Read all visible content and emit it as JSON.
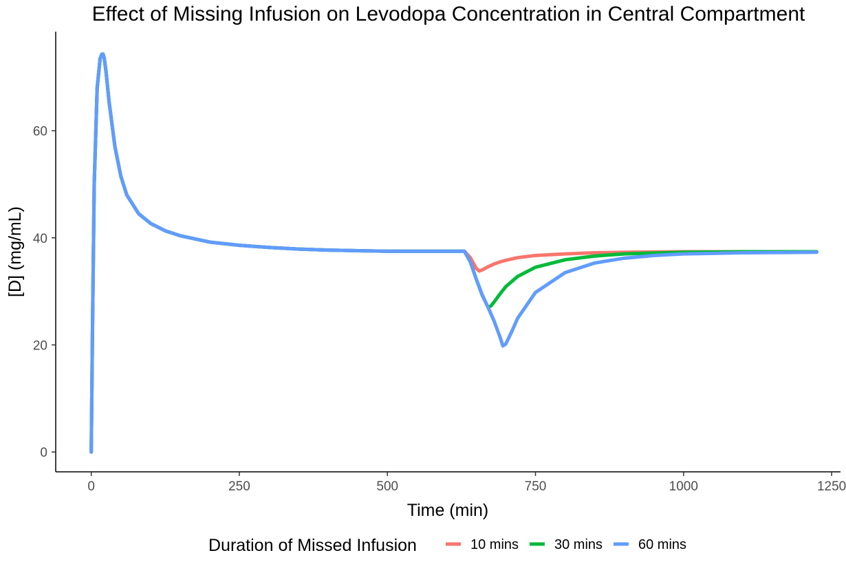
{
  "chart_data": {
    "type": "line",
    "title": "Effect of Missing Infusion on Levodopa Concentration in Central Compartment",
    "xlabel": "Time (min)",
    "ylabel": "[D] (mg/mL)",
    "xlim": [
      -60,
      1265
    ],
    "ylim": [
      -3.7,
      78.5
    ],
    "x_ticks": [
      0,
      250,
      500,
      750,
      1000,
      1250
    ],
    "y_ticks": [
      0,
      20,
      40,
      60
    ],
    "x_tick_labels": [
      "0",
      "250",
      "500",
      "750",
      "1000",
      "1250"
    ],
    "y_tick_labels": [
      "0",
      "20",
      "40",
      "60"
    ],
    "grid": false,
    "legend": {
      "title": "Duration of Missed Infusion",
      "position": "bottom"
    },
    "series": [
      {
        "name": "10 mins",
        "color": "#F8766D",
        "x": [
          0,
          2,
          5,
          10,
          15,
          18,
          20,
          22,
          25,
          30,
          40,
          50,
          60,
          80,
          100,
          125,
          150,
          200,
          250,
          300,
          350,
          400,
          450,
          500,
          550,
          600,
          630,
          640,
          650,
          655,
          660,
          670,
          680,
          690,
          700,
          720,
          750,
          800,
          850,
          900,
          1000,
          1100,
          1225
        ],
        "y": [
          0,
          22,
          50,
          68,
          73.5,
          74.3,
          74.3,
          73.5,
          71,
          65.5,
          57,
          51.5,
          48,
          44.5,
          42.7,
          41.3,
          40.4,
          39.2,
          38.6,
          38.2,
          37.9,
          37.7,
          37.6,
          37.5,
          37.5,
          37.5,
          37.5,
          36.3,
          34.3,
          33.8,
          34.0,
          34.6,
          35.1,
          35.5,
          35.8,
          36.3,
          36.7,
          37.0,
          37.2,
          37.3,
          37.4,
          37.4,
          37.4
        ]
      },
      {
        "name": "30 mins",
        "color": "#00BA38",
        "x": [
          0,
          2,
          5,
          10,
          15,
          18,
          20,
          22,
          25,
          30,
          40,
          50,
          60,
          80,
          100,
          125,
          150,
          200,
          250,
          300,
          350,
          400,
          450,
          500,
          550,
          600,
          630,
          640,
          650,
          660,
          670,
          675,
          680,
          690,
          700,
          720,
          750,
          800,
          850,
          900,
          1000,
          1100,
          1225
        ],
        "y": [
          0,
          22,
          50,
          68,
          73.5,
          74.3,
          74.3,
          73.5,
          71,
          65.5,
          57,
          51.5,
          48,
          44.5,
          42.7,
          41.3,
          40.4,
          39.2,
          38.6,
          38.2,
          37.9,
          37.7,
          37.6,
          37.5,
          37.5,
          37.5,
          37.5,
          35.5,
          32.3,
          29.3,
          27.0,
          27.3,
          28.0,
          29.5,
          30.9,
          32.8,
          34.5,
          35.9,
          36.6,
          37.0,
          37.3,
          37.4,
          37.4
        ]
      },
      {
        "name": "60 mins",
        "color": "#619CFF",
        "x": [
          0,
          2,
          5,
          10,
          15,
          18,
          20,
          22,
          25,
          30,
          40,
          50,
          60,
          80,
          100,
          125,
          150,
          200,
          250,
          300,
          350,
          400,
          450,
          500,
          550,
          600,
          630,
          640,
          650,
          660,
          670,
          680,
          690,
          695,
          700,
          710,
          720,
          750,
          800,
          850,
          900,
          950,
          1000,
          1100,
          1225
        ],
        "y": [
          0,
          22,
          50,
          68,
          73.5,
          74.3,
          74.3,
          73.5,
          71,
          65.5,
          57,
          51.5,
          48,
          44.5,
          42.7,
          41.3,
          40.4,
          39.2,
          38.6,
          38.2,
          37.9,
          37.7,
          37.6,
          37.5,
          37.5,
          37.5,
          37.5,
          35.5,
          32.3,
          29.4,
          27.0,
          24.5,
          21.5,
          19.8,
          20.2,
          22.5,
          25.0,
          29.8,
          33.5,
          35.3,
          36.2,
          36.7,
          37.0,
          37.2,
          37.3
        ]
      }
    ]
  }
}
